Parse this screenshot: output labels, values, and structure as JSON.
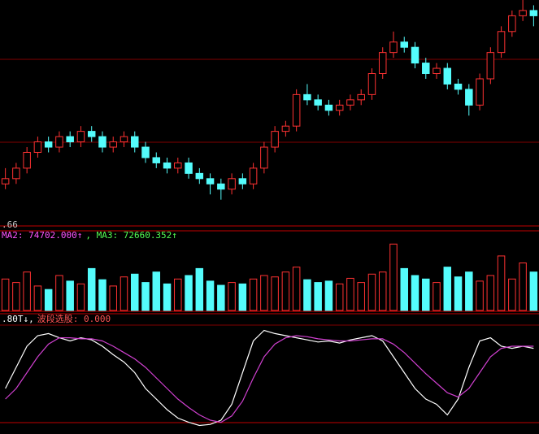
{
  "chart_data": [
    {
      "type": "candlestick",
      "up_color": "#ff3232",
      "down_color": "#54fcfc",
      "ylim": [
        57,
        100
      ],
      "annotations": [
        ".66"
      ],
      "ohlc": [
        [
          65,
          68,
          64,
          66
        ],
        [
          66,
          69,
          65,
          68
        ],
        [
          68,
          72,
          67,
          71
        ],
        [
          71,
          74,
          70,
          73
        ],
        [
          73,
          74,
          71,
          72
        ],
        [
          72,
          75,
          71,
          74
        ],
        [
          74,
          75,
          72,
          73
        ],
        [
          73,
          76,
          72,
          75
        ],
        [
          75,
          76,
          73,
          74
        ],
        [
          74,
          75,
          71,
          72
        ],
        [
          72,
          74,
          71,
          73
        ],
        [
          73,
          75,
          72,
          74
        ],
        [
          74,
          75,
          71,
          72
        ],
        [
          72,
          73,
          69,
          70
        ],
        [
          70,
          71,
          68,
          69
        ],
        [
          69,
          70,
          67,
          68
        ],
        [
          68,
          70,
          67,
          69
        ],
        [
          69,
          70,
          66,
          67
        ],
        [
          67,
          68,
          65,
          66
        ],
        [
          66,
          67,
          63,
          65
        ],
        [
          65,
          66,
          62,
          64
        ],
        [
          64,
          67,
          63,
          66
        ],
        [
          66,
          67,
          64,
          65
        ],
        [
          65,
          69,
          64,
          68
        ],
        [
          68,
          73,
          67,
          72
        ],
        [
          72,
          76,
          71,
          75
        ],
        [
          75,
          77,
          74,
          76
        ],
        [
          76,
          83,
          75,
          82
        ],
        [
          82,
          84,
          80,
          81
        ],
        [
          81,
          82,
          79,
          80
        ],
        [
          80,
          81,
          78,
          79
        ],
        [
          79,
          81,
          78,
          80
        ],
        [
          80,
          82,
          79,
          81
        ],
        [
          81,
          83,
          80,
          82
        ],
        [
          82,
          87,
          81,
          86
        ],
        [
          86,
          91,
          85,
          90
        ],
        [
          90,
          94,
          89,
          92
        ],
        [
          92,
          93,
          90,
          91
        ],
        [
          91,
          92,
          87,
          88
        ],
        [
          88,
          89,
          85,
          86
        ],
        [
          86,
          88,
          85,
          87
        ],
        [
          87,
          88,
          83,
          84
        ],
        [
          84,
          85,
          82,
          83
        ],
        [
          83,
          84,
          78,
          80
        ],
        [
          80,
          86,
          79,
          85
        ],
        [
          85,
          91,
          84,
          90
        ],
        [
          90,
          95,
          89,
          94
        ],
        [
          94,
          98,
          93,
          97
        ],
        [
          97,
          100,
          96,
          98
        ],
        [
          98,
          99,
          95,
          97
        ]
      ]
    },
    {
      "type": "bar",
      "ylim": [
        0,
        100
      ],
      "annotations": [
        "MA2: 74702.000↑",
        ", MA3: 72660.352↑"
      ],
      "annotation_colors": [
        "#ff54ff",
        "#54ff54"
      ],
      "values": [
        45,
        40,
        55,
        35,
        30,
        50,
        42,
        38,
        60,
        44,
        35,
        48,
        52,
        40,
        55,
        38,
        45,
        50,
        60,
        42,
        36,
        40,
        38,
        45,
        50,
        48,
        55,
        62,
        44,
        40,
        42,
        38,
        46,
        40,
        52,
        55,
        95,
        60,
        50,
        45,
        40,
        62,
        48,
        55,
        42,
        50,
        78,
        45,
        68,
        55
      ]
    },
    {
      "type": "line",
      "ylim": [
        0,
        100
      ],
      "annotations": [
        ".80T↓,",
        "波段选股: 0.000"
      ],
      "annotation_colors": [
        "#ffffff",
        "#ff5454"
      ],
      "series": [
        {
          "color": "#ffffff",
          "values": [
            40,
            60,
            80,
            90,
            92,
            88,
            85,
            88,
            86,
            80,
            72,
            65,
            55,
            40,
            30,
            20,
            12,
            8,
            5,
            6,
            10,
            25,
            55,
            85,
            95,
            92,
            90,
            88,
            86,
            84,
            85,
            83,
            86,
            88,
            90,
            85,
            70,
            55,
            40,
            30,
            25,
            15,
            30,
            60,
            85,
            88,
            80,
            78,
            80,
            78
          ]
        },
        {
          "color": "#d040d0",
          "values": [
            30,
            40,
            55,
            70,
            82,
            88,
            88,
            87,
            87,
            85,
            80,
            74,
            68,
            60,
            50,
            40,
            30,
            22,
            15,
            10,
            8,
            14,
            28,
            50,
            70,
            82,
            88,
            90,
            89,
            87,
            86,
            85,
            85,
            86,
            87,
            87,
            82,
            74,
            64,
            54,
            45,
            36,
            32,
            40,
            55,
            70,
            78,
            80,
            80,
            80
          ]
        }
      ]
    }
  ]
}
